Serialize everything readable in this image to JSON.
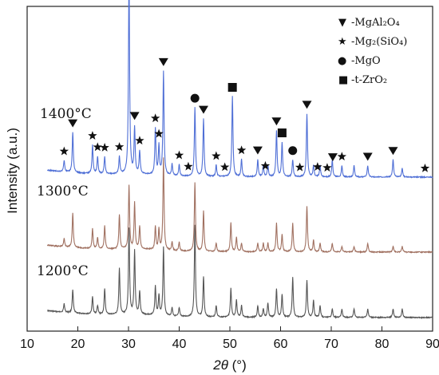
{
  "chart_data": {
    "type": "line",
    "xlabel_italic": "2θ",
    "xlabel_unit": " (°)",
    "ylabel": "Intensity (a.u.)",
    "xlim": [
      10,
      90
    ],
    "x_ticks": [
      10,
      20,
      30,
      40,
      50,
      60,
      70,
      80,
      90
    ],
    "grid": false,
    "legend_position": "top-right",
    "legend": [
      {
        "marker": "triangle-down",
        "symbol": "▼",
        "label": "-MgAl₂O₄"
      },
      {
        "marker": "star",
        "symbol": "★",
        "label": "-Mg₂(SiO₄)"
      },
      {
        "marker": "circle",
        "symbol": "●",
        "label": "-MgO"
      },
      {
        "marker": "square",
        "symbol": "■",
        "label": "-t-ZrO₂"
      }
    ],
    "series": [
      {
        "name": "1200°C",
        "color": "#555555",
        "baseline": 0,
        "peaks": [
          [
            17.3,
            1.5
          ],
          [
            19.0,
            4
          ],
          [
            22.9,
            3
          ],
          [
            23.9,
            1.5
          ],
          [
            25.3,
            4.5
          ],
          [
            28.2,
            8
          ],
          [
            30.1,
            15
          ],
          [
            31.2,
            11
          ],
          [
            32.2,
            4
          ],
          [
            35.3,
            5
          ],
          [
            36.0,
            3.5
          ],
          [
            36.9,
            12
          ],
          [
            38.6,
            1.5
          ],
          [
            40.0,
            1.5
          ],
          [
            43.1,
            16
          ],
          [
            44.8,
            7
          ],
          [
            47.3,
            2
          ],
          [
            50.2,
            5
          ],
          [
            51.3,
            3
          ],
          [
            52.3,
            2
          ],
          [
            55.5,
            2
          ],
          [
            56.6,
            1.5
          ],
          [
            57.5,
            2.5
          ],
          [
            59.2,
            5
          ],
          [
            60.3,
            4
          ],
          [
            62.4,
            7
          ],
          [
            65.2,
            6.5
          ],
          [
            66.5,
            3
          ],
          [
            67.8,
            2
          ],
          [
            70.2,
            1.5
          ],
          [
            72.1,
            1.5
          ],
          [
            74.5,
            1.5
          ],
          [
            77.2,
            1.5
          ],
          [
            82.2,
            1.5
          ],
          [
            84.0,
            1.5
          ]
        ]
      },
      {
        "name": "1300°C",
        "color": "#a07060",
        "baseline": 0,
        "peaks": [
          [
            17.3,
            1.5
          ],
          [
            19.0,
            6
          ],
          [
            22.9,
            3.5
          ],
          [
            23.9,
            2
          ],
          [
            25.3,
            4
          ],
          [
            28.2,
            6
          ],
          [
            30.1,
            11
          ],
          [
            31.2,
            8
          ],
          [
            32.2,
            4
          ],
          [
            35.3,
            4
          ],
          [
            36.0,
            3.5
          ],
          [
            36.9,
            16
          ],
          [
            38.6,
            1.5
          ],
          [
            40.0,
            1.5
          ],
          [
            43.1,
            12
          ],
          [
            44.8,
            7
          ],
          [
            47.3,
            1.5
          ],
          [
            50.2,
            5
          ],
          [
            51.3,
            2.5
          ],
          [
            52.3,
            1.5
          ],
          [
            55.5,
            1.5
          ],
          [
            56.6,
            1.5
          ],
          [
            57.5,
            1.5
          ],
          [
            59.2,
            5
          ],
          [
            60.3,
            3
          ],
          [
            62.4,
            5
          ],
          [
            65.2,
            8
          ],
          [
            66.5,
            2
          ],
          [
            67.8,
            1.5
          ],
          [
            70.2,
            1.5
          ],
          [
            72.1,
            1
          ],
          [
            74.5,
            1
          ],
          [
            77.2,
            1.5
          ],
          [
            82.2,
            1
          ],
          [
            84.0,
            1
          ]
        ]
      },
      {
        "name": "1400°C",
        "color": "#4f6fd6",
        "baseline": 0,
        "peaks": [
          [
            17.3,
            2
          ],
          [
            19.0,
            7
          ],
          [
            22.9,
            5
          ],
          [
            23.9,
            3
          ],
          [
            25.3,
            3
          ],
          [
            28.2,
            3
          ],
          [
            30.1,
            35
          ],
          [
            31.2,
            8
          ],
          [
            32.2,
            4
          ],
          [
            35.3,
            8
          ],
          [
            36.0,
            5
          ],
          [
            36.9,
            18
          ],
          [
            38.6,
            2
          ],
          [
            40.0,
            2
          ],
          [
            43.1,
            12
          ],
          [
            44.8,
            10
          ],
          [
            47.3,
            2
          ],
          [
            50.5,
            14
          ],
          [
            52.3,
            3
          ],
          [
            55.5,
            3
          ],
          [
            56.6,
            2
          ],
          [
            57.5,
            2
          ],
          [
            59.2,
            8
          ],
          [
            60.3,
            6
          ],
          [
            62.4,
            3
          ],
          [
            65.2,
            11
          ],
          [
            66.5,
            2
          ],
          [
            67.8,
            2
          ],
          [
            70.2,
            3
          ],
          [
            72.1,
            2
          ],
          [
            74.5,
            2
          ],
          [
            77.2,
            2
          ],
          [
            82.2,
            3
          ],
          [
            84.0,
            1.5
          ]
        ]
      }
    ],
    "markers_1400": [
      {
        "type": "star",
        "x": 17.3
      },
      {
        "type": "triangle-down",
        "x": 19.0
      },
      {
        "type": "star",
        "x": 22.9
      },
      {
        "type": "star",
        "x": 23.9
      },
      {
        "type": "star",
        "x": 25.3
      },
      {
        "type": "star",
        "x": 28.2
      },
      {
        "type": "square",
        "x": 30.1
      },
      {
        "type": "triangle-down",
        "x": 31.2
      },
      {
        "type": "star",
        "x": 32.2
      },
      {
        "type": "star",
        "x": 35.3
      },
      {
        "type": "star",
        "x": 36.0
      },
      {
        "type": "triangle-down",
        "x": 36.9
      },
      {
        "type": "star",
        "x": 40.0
      },
      {
        "type": "star",
        "x": 41.8
      },
      {
        "type": "circle",
        "x": 43.1
      },
      {
        "type": "triangle-down",
        "x": 44.8
      },
      {
        "type": "star",
        "x": 47.3
      },
      {
        "type": "star",
        "x": 49.0
      },
      {
        "type": "square",
        "x": 50.5
      },
      {
        "type": "star",
        "x": 52.3
      },
      {
        "type": "triangle-down",
        "x": 55.5
      },
      {
        "type": "star",
        "x": 57.0
      },
      {
        "type": "triangle-down",
        "x": 59.2
      },
      {
        "type": "square",
        "x": 60.3
      },
      {
        "type": "circle",
        "x": 62.4
      },
      {
        "type": "star",
        "x": 63.8
      },
      {
        "type": "triangle-down",
        "x": 65.2
      },
      {
        "type": "star",
        "x": 67.3
      },
      {
        "type": "star",
        "x": 69.2
      },
      {
        "type": "triangle-down",
        "x": 70.3
      },
      {
        "type": "star",
        "x": 72.1
      },
      {
        "type": "triangle-down",
        "x": 77.2
      },
      {
        "type": "triangle-down",
        "x": 82.2
      },
      {
        "type": "star",
        "x": 88.5
      }
    ]
  }
}
